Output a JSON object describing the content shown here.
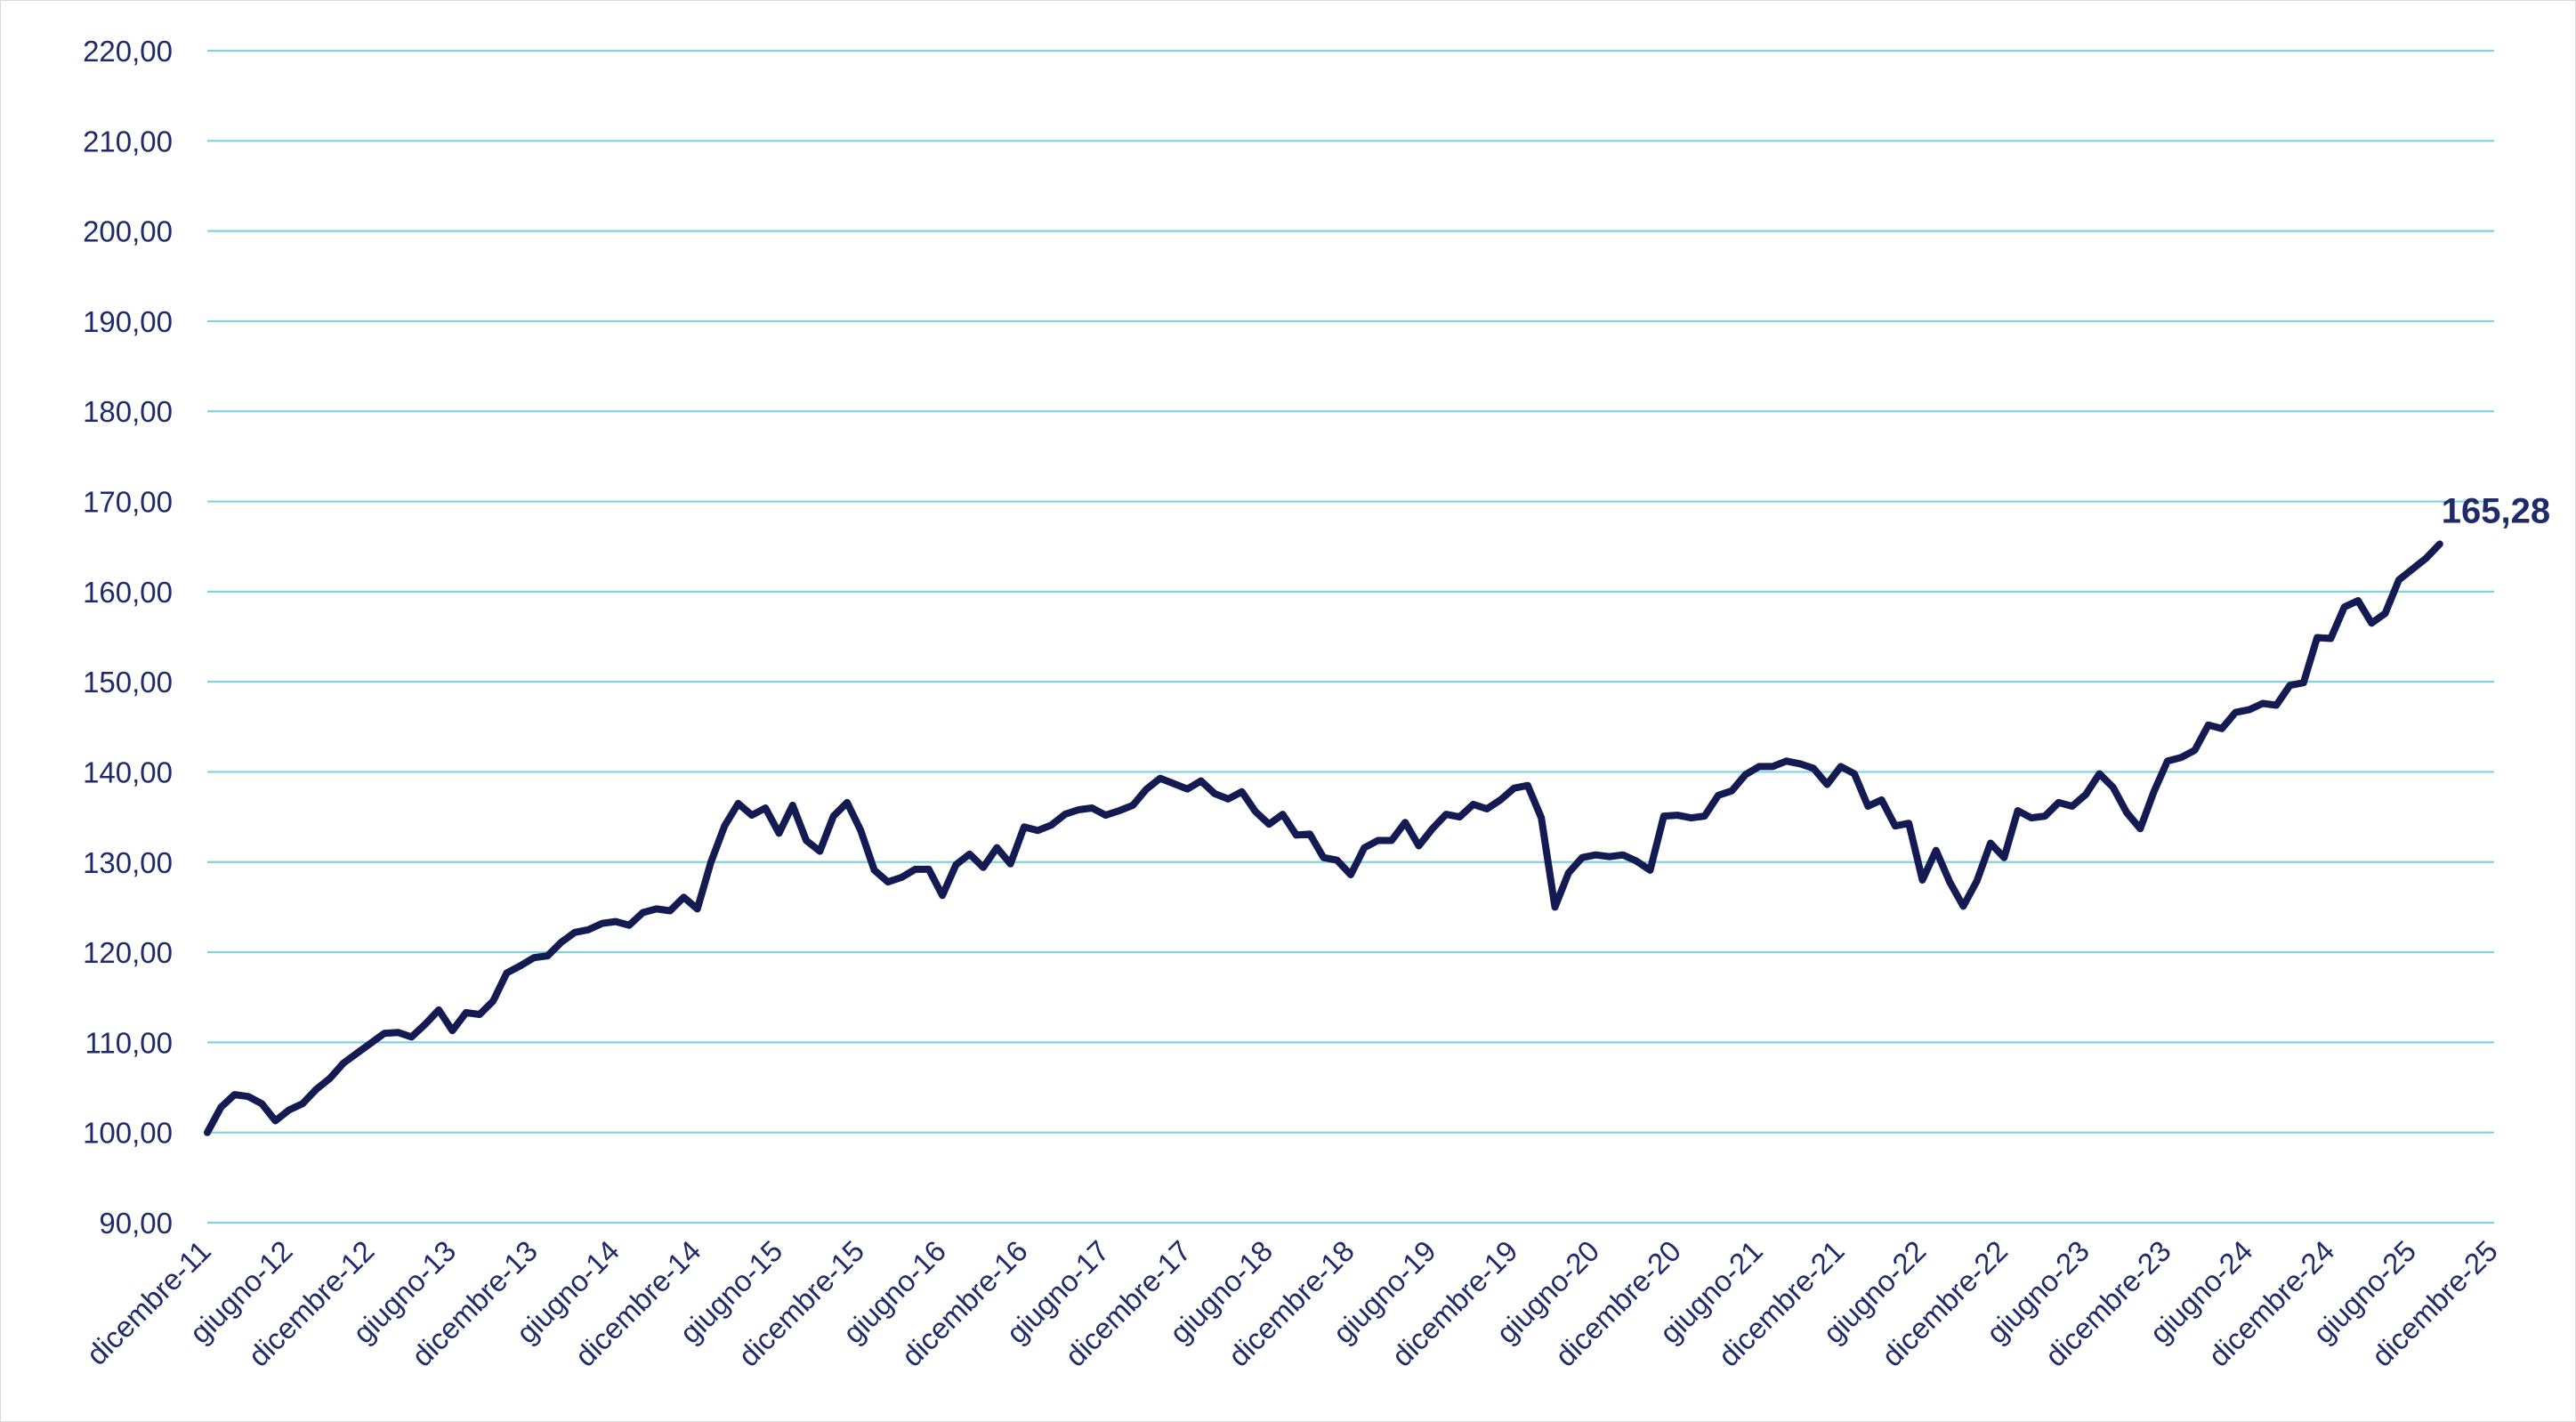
{
  "chart_data": {
    "type": "line",
    "title": "",
    "xlabel": "",
    "ylabel": "",
    "ylim": [
      90,
      220
    ],
    "yticks": [
      "90,00",
      "100,00",
      "110,00",
      "120,00",
      "130,00",
      "140,00",
      "150,00",
      "160,00",
      "170,00",
      "180,00",
      "190,00",
      "200,00",
      "210,00",
      "220,00"
    ],
    "xticks": [
      "dicembre-11",
      "giugno-12",
      "dicembre-12",
      "giugno-13",
      "dicembre-13",
      "giugno-14",
      "dicembre-14",
      "giugno-15",
      "dicembre-15",
      "giugno-16",
      "dicembre-16",
      "giugno-17",
      "dicembre-17",
      "giugno-18",
      "dicembre-18",
      "giugno-19",
      "dicembre-19",
      "giugno-20",
      "dicembre-20",
      "giugno-21",
      "dicembre-21",
      "giugno-22",
      "dicembre-22",
      "giugno-23",
      "dicembre-23",
      "giugno-24",
      "dicembre-24",
      "giugno-25",
      "dicembre-25"
    ],
    "x_start": "dicembre-11",
    "frequency": "monthly",
    "grid": true,
    "legend": "none",
    "end_label": "165,28",
    "colors": {
      "line": "#141a52",
      "grid": "#7fd3e0",
      "text": "#1f2a6b"
    },
    "series": [
      {
        "values": [
          100.0,
          102.8,
          104.2,
          104.0,
          103.2,
          101.3,
          102.5,
          103.2,
          104.8,
          106.0,
          107.7,
          108.8,
          109.9,
          111.0,
          111.1,
          110.6,
          112.0,
          113.6,
          111.3,
          113.3,
          113.1,
          114.6,
          117.7,
          118.5,
          119.4,
          119.6,
          121.1,
          122.2,
          122.5,
          123.2,
          123.4,
          123.0,
          124.4,
          124.8,
          124.6,
          126.1,
          124.8,
          130.0,
          134.0,
          136.5,
          135.2,
          136.0,
          133.2,
          136.3,
          132.4,
          131.2,
          135.1,
          136.6,
          133.5,
          129.1,
          127.8,
          128.3,
          129.2,
          129.2,
          126.3,
          129.7,
          130.9,
          129.4,
          131.6,
          129.8,
          133.9,
          133.5,
          134.1,
          135.3,
          135.8,
          136.0,
          135.2,
          135.7,
          136.3,
          138.1,
          139.3,
          138.7,
          138.1,
          139.0,
          137.6,
          137.0,
          137.8,
          135.6,
          134.2,
          135.3,
          133.0,
          133.1,
          130.5,
          130.2,
          128.6,
          131.6,
          132.4,
          132.4,
          134.4,
          131.8,
          133.7,
          135.3,
          135.0,
          136.4,
          135.9,
          136.9,
          138.2,
          138.5,
          134.9,
          125.0,
          128.8,
          130.5,
          130.8,
          130.6,
          130.8,
          130.1,
          129.1,
          135.1,
          135.2,
          134.9,
          135.1,
          137.4,
          137.9,
          139.7,
          140.6,
          140.6,
          141.2,
          140.9,
          140.4,
          138.6,
          140.6,
          139.8,
          136.2,
          136.9,
          134.0,
          134.3,
          128.0,
          131.3,
          127.8,
          125.1,
          127.9,
          132.1,
          130.5,
          135.7,
          134.9,
          135.1,
          136.6,
          136.2,
          137.5,
          139.8,
          138.3,
          135.5,
          133.7,
          137.8,
          141.2,
          141.6,
          142.4,
          145.2,
          144.8,
          146.6,
          146.9,
          147.6,
          147.4,
          149.6,
          149.9,
          154.9,
          154.8,
          158.3,
          159.0,
          156.5,
          157.6,
          161.3,
          162.5,
          163.7,
          165.28
        ]
      }
    ]
  }
}
